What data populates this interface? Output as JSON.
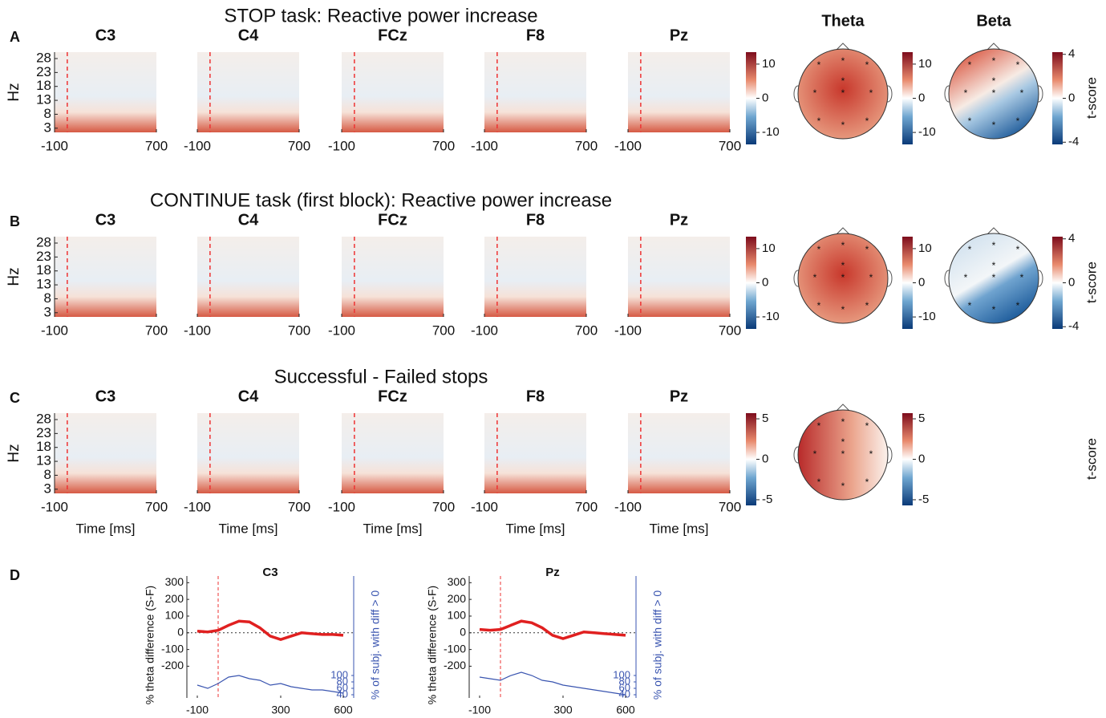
{
  "chart_data": [
    {
      "type": "heatmap",
      "panel": "A",
      "title": "STOP task: Reactive power increase",
      "channels": [
        "C3",
        "C4",
        "FCz",
        "F8",
        "Pz"
      ],
      "ylabel": "Hz",
      "xlim": [
        -100,
        700
      ],
      "xticks": [
        -100,
        700
      ],
      "ylim": [
        1.5,
        30.3
      ],
      "yticks": [
        3,
        8,
        13,
        18,
        23,
        28
      ],
      "clim": [
        -13.5,
        13.5
      ],
      "cticks": [
        -10,
        0,
        10
      ],
      "topomaps": [
        {
          "title": "Theta",
          "clim": [
            -13.5,
            13.5
          ],
          "cticks": [
            -10,
            0,
            10
          ],
          "style": "theta"
        },
        {
          "title": "Beta",
          "clim": [
            -4.2,
            4.2
          ],
          "cticks": [
            -4,
            0,
            4
          ],
          "clabel": "t-score",
          "style": "beta"
        }
      ]
    },
    {
      "type": "heatmap",
      "panel": "B",
      "title": "CONTINUE task (first block): Reactive power increase",
      "channels": [
        "C3",
        "C4",
        "FCz",
        "F8",
        "Pz"
      ],
      "ylabel": "Hz",
      "xlim": [
        -100,
        700
      ],
      "xticks": [
        -100,
        700
      ],
      "ylim": [
        1.5,
        30.3
      ],
      "yticks": [
        3,
        8,
        13,
        18,
        23,
        28
      ],
      "clim": [
        -13.5,
        13.5
      ],
      "cticks": [
        -10,
        0,
        10
      ],
      "topomaps": [
        {
          "clim": [
            -13.5,
            13.5
          ],
          "cticks": [
            -10,
            0,
            10
          ],
          "style": "theta"
        },
        {
          "clim": [
            -4.2,
            4.2
          ],
          "cticks": [
            -4,
            0,
            4
          ],
          "clabel": "t-score",
          "style": "beta2"
        }
      ]
    },
    {
      "type": "heatmap",
      "panel": "C",
      "title": "Successful - Failed stops",
      "channels": [
        "C3",
        "C4",
        "FCz",
        "F8",
        "Pz"
      ],
      "ylabel": "Hz",
      "xlabel": "Time [ms]",
      "xlim": [
        -100,
        700
      ],
      "xticks": [
        -100,
        700
      ],
      "ylim": [
        1.5,
        30.3
      ],
      "yticks": [
        3,
        8,
        13,
        18,
        23,
        28
      ],
      "clim": [
        -5.7,
        5.7
      ],
      "cticks": [
        -5,
        0,
        5
      ],
      "topomaps": [
        {
          "clim": [
            -5.7,
            5.7
          ],
          "cticks": [
            -5,
            0,
            5
          ],
          "clabel": "t-score",
          "style": "left"
        }
      ]
    },
    {
      "type": "line",
      "panel": "D",
      "title": "C3",
      "ylabel": "% theta difference (S-F)",
      "y2label": "% of subj. with diff > 0",
      "xlim": [
        -150,
        650
      ],
      "xticks": [
        -100,
        300,
        600
      ],
      "ylim": [
        -390,
        340
      ],
      "yticks": [
        -200,
        -100,
        0,
        100,
        200,
        300
      ],
      "y2lim": [
        30,
        410
      ],
      "y2ticks": [
        40,
        60,
        80,
        100
      ],
      "x": [
        -100,
        -50,
        0,
        50,
        100,
        150,
        200,
        250,
        300,
        350,
        400,
        450,
        500,
        550,
        600
      ],
      "series": [
        {
          "color": "#e02020",
          "values": [
            10,
            5,
            15,
            45,
            70,
            65,
            30,
            -20,
            -40,
            -20,
            0,
            -5,
            -10,
            -10,
            -15
          ]
        },
        {
          "color": "#3a55b0",
          "axis": "y2",
          "values": [
            70,
            60,
            75,
            95,
            100,
            90,
            85,
            70,
            75,
            65,
            60,
            55,
            55,
            50,
            45
          ]
        }
      ]
    },
    {
      "type": "line",
      "title": "Pz",
      "ylabel": "% theta difference (S-F)",
      "y2label": "% of subj. with diff > 0",
      "xlim": [
        -150,
        650
      ],
      "xticks": [
        -100,
        300,
        600
      ],
      "ylim": [
        -390,
        340
      ],
      "yticks": [
        -200,
        -100,
        0,
        100,
        200,
        300
      ],
      "y2lim": [
        30,
        410
      ],
      "y2ticks": [
        40,
        60,
        80,
        100
      ],
      "x": [
        -100,
        -50,
        0,
        50,
        100,
        150,
        200,
        250,
        300,
        350,
        400,
        450,
        500,
        550,
        600
      ],
      "series": [
        {
          "color": "#e02020",
          "values": [
            20,
            15,
            20,
            45,
            70,
            60,
            30,
            -15,
            -35,
            -15,
            5,
            0,
            -5,
            -10,
            -15
          ]
        },
        {
          "color": "#3a55b0",
          "axis": "y2",
          "values": [
            95,
            90,
            85,
            100,
            110,
            100,
            85,
            80,
            70,
            65,
            60,
            55,
            50,
            45,
            40
          ]
        }
      ]
    }
  ]
}
